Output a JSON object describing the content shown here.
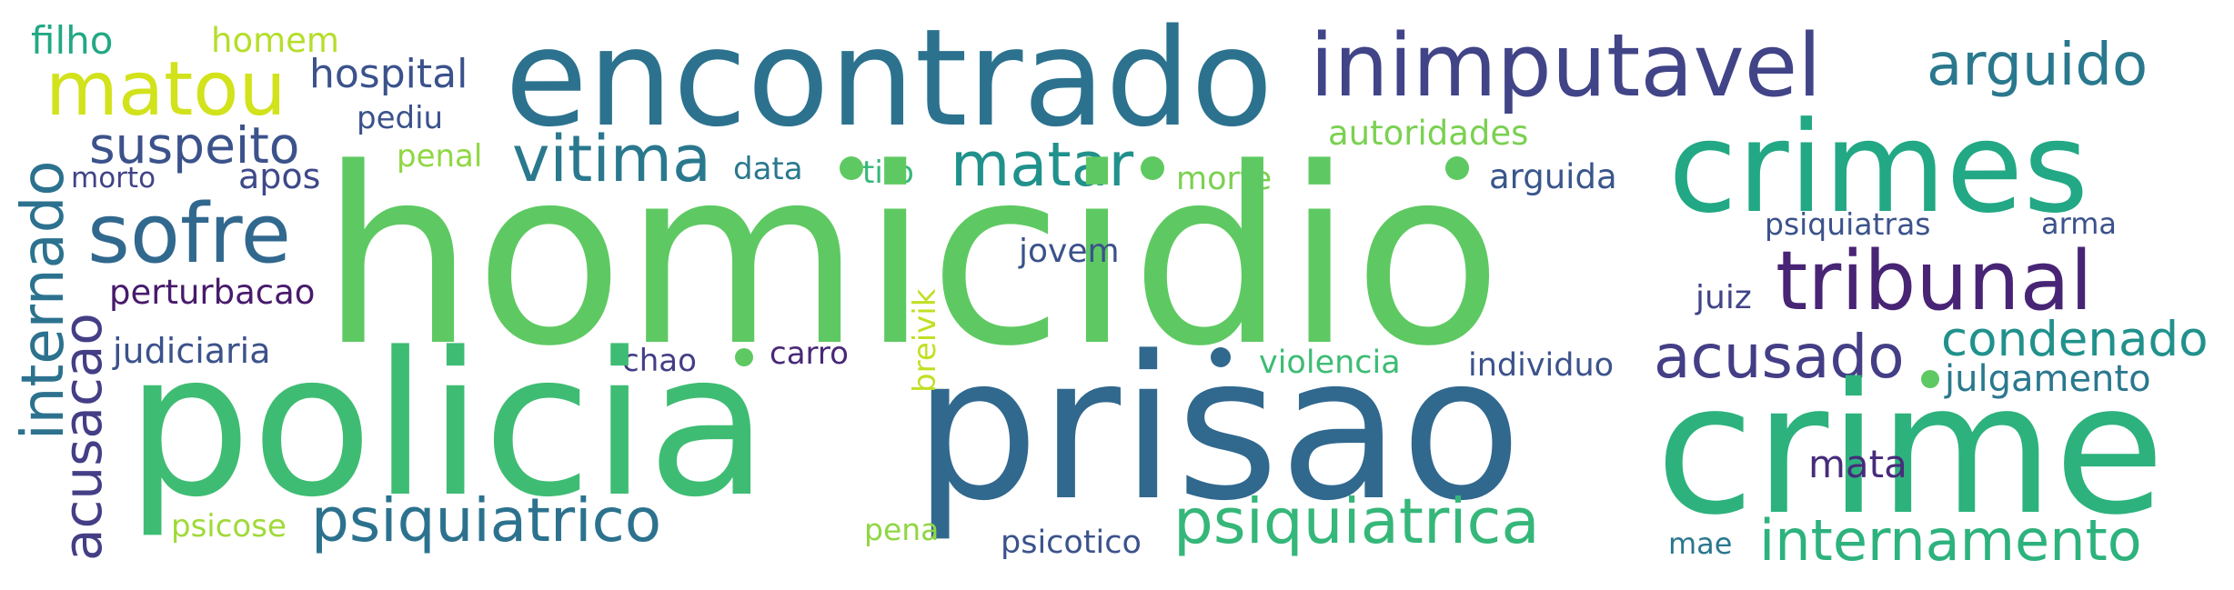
{
  "words": [
    {
      "id": "homicidio",
      "text": "homicidio",
      "color": "#5ec962"
    },
    {
      "id": "encontrado",
      "text": "encontrado",
      "color": "#2c728e"
    },
    {
      "id": "policia",
      "text": "policia",
      "color": "#3fbc73"
    },
    {
      "id": "prisao",
      "text": "prisao",
      "color": "#31688e"
    },
    {
      "id": "crime",
      "text": "crime",
      "color": "#2db27d"
    },
    {
      "id": "crimes",
      "text": "crimes",
      "color": "#22a884"
    },
    {
      "id": "inimputavel",
      "text": "inimputavel",
      "color": "#414487"
    },
    {
      "id": "arguido",
      "text": "arguido",
      "color": "#2a788e"
    },
    {
      "id": "tribunal",
      "text": "tribunal",
      "color": "#482475"
    },
    {
      "id": "matou",
      "text": "matou",
      "color": "#d2e21b"
    },
    {
      "id": "sofre",
      "text": "sofre",
      "color": "#31688e"
    },
    {
      "id": "vitima",
      "text": "vitima",
      "color": "#2a788e"
    },
    {
      "id": "matar",
      "text": "matar",
      "color": "#21918c"
    },
    {
      "id": "psiquiatrico",
      "text": "psiquiatrico",
      "color": "#2c728e"
    },
    {
      "id": "psiquiatrica",
      "text": "psiquiatrica",
      "color": "#35b779"
    },
    {
      "id": "internamento",
      "text": "internamento",
      "color": "#2db27d"
    },
    {
      "id": "acusado",
      "text": "acusado",
      "color": "#433e85"
    },
    {
      "id": "condenado",
      "text": "condenado",
      "color": "#21918c"
    },
    {
      "id": "julgamento",
      "text": "julgamento",
      "color": "#2a788e"
    },
    {
      "id": "internado",
      "text": "internado",
      "color": "#2c728e"
    },
    {
      "id": "acusacao",
      "text": "acusacao",
      "color": "#433e85"
    },
    {
      "id": "suspeito",
      "text": "suspeito",
      "color": "#3b528b"
    },
    {
      "id": "hospital",
      "text": "hospital",
      "color": "#3b528b"
    },
    {
      "id": "filho",
      "text": "filho",
      "color": "#22a884"
    },
    {
      "id": "homem",
      "text": "homem",
      "color": "#b5de2b"
    },
    {
      "id": "pediu",
      "text": "pediu",
      "color": "#3b528b"
    },
    {
      "id": "penal",
      "text": "penal",
      "color": "#90d743"
    },
    {
      "id": "apos",
      "text": "apos",
      "color": "#3e4989"
    },
    {
      "id": "morto",
      "text": "morto",
      "color": "#414487"
    },
    {
      "id": "perturbacao",
      "text": "perturbacao",
      "color": "#481a6c"
    },
    {
      "id": "judiciaria",
      "text": "judiciaria",
      "color": "#3b528b"
    },
    {
      "id": "autoridades",
      "text": "autoridades",
      "color": "#7ad151"
    },
    {
      "id": "arguida",
      "text": "arguida",
      "color": "#39568c"
    },
    {
      "id": "data",
      "text": "data",
      "color": "#2a788e"
    },
    {
      "id": "tiro",
      "text": "tiro",
      "color": "#35b779"
    },
    {
      "id": "morte",
      "text": "morte",
      "color": "#7ad151"
    },
    {
      "id": "psiquiatras",
      "text": "psiquiatras",
      "color": "#3b528b"
    },
    {
      "id": "arma",
      "text": "arma",
      "color": "#3b528b"
    },
    {
      "id": "jovem",
      "text": "jovem",
      "color": "#3b528b"
    },
    {
      "id": "juiz",
      "text": "juiz",
      "color": "#414487"
    },
    {
      "id": "breivik",
      "text": "breivik",
      "color": "#c2df23"
    },
    {
      "id": "chao",
      "text": "chao",
      "color": "#433e85"
    },
    {
      "id": "carro",
      "text": "carro",
      "color": "#482878"
    },
    {
      "id": "violencia",
      "text": "violencia",
      "color": "#3dbc74"
    },
    {
      "id": "individuo",
      "text": "individuo",
      "color": "#3b528b"
    },
    {
      "id": "mata",
      "text": "mata",
      "color": "#472c7a"
    },
    {
      "id": "psicose",
      "text": "psicose",
      "color": "#a0da39"
    },
    {
      "id": "pena",
      "text": "pena",
      "color": "#90d743"
    },
    {
      "id": "psicotico",
      "text": "psicotico",
      "color": "#3b528b"
    },
    {
      "id": "mae",
      "text": "mae",
      "color": "#2a788e"
    }
  ],
  "dots": [
    {
      "id": "dot-1",
      "color": "#5ec962"
    },
    {
      "id": "dot-2",
      "color": "#5ec962"
    },
    {
      "id": "dot-3",
      "color": "#5ec962"
    },
    {
      "id": "dot-4",
      "color": "#5ec962"
    },
    {
      "id": "dot-5",
      "color": "#31688e"
    },
    {
      "id": "dot-6",
      "color": "#5ec962"
    }
  ]
}
